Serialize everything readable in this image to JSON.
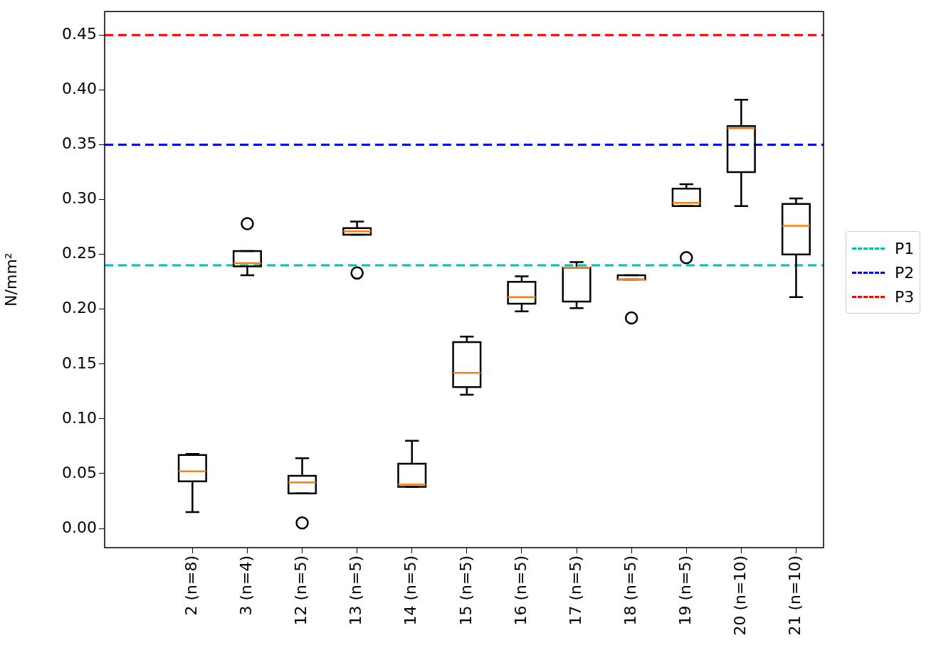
{
  "chart_data": {
    "type": "box",
    "ylabel": "N/mm²",
    "categories": [
      "2 (n=8)",
      "3 (n=4)",
      "12 (n=5)",
      "13 (n=5)",
      "14 (n=5)",
      "15 (n=5)",
      "16 (n=5)",
      "17 (n=5)",
      "18 (n=5)",
      "19 (n=5)",
      "20 (n=10)",
      "21 (n=10)"
    ],
    "boxes": [
      {
        "low": 0.015,
        "q1": 0.043,
        "median": 0.052,
        "q3": 0.067,
        "high": 0.068
      },
      {
        "low": 0.231,
        "q1": 0.239,
        "median": 0.242,
        "q3": 0.253,
        "high": 0.253,
        "outliers": [
          0.278
        ]
      },
      {
        "low": 0.032,
        "q1": 0.032,
        "median": 0.042,
        "q3": 0.048,
        "high": 0.064,
        "outliers": [
          0.005
        ]
      },
      {
        "low": 0.268,
        "q1": 0.268,
        "median": 0.271,
        "q3": 0.274,
        "high": 0.28,
        "outliers": [
          0.233
        ]
      },
      {
        "low": 0.038,
        "q1": 0.038,
        "median": 0.04,
        "q3": 0.059,
        "high": 0.08
      },
      {
        "low": 0.122,
        "q1": 0.129,
        "median": 0.142,
        "q3": 0.17,
        "high": 0.175
      },
      {
        "low": 0.198,
        "q1": 0.205,
        "median": 0.211,
        "q3": 0.225,
        "high": 0.23
      },
      {
        "low": 0.201,
        "q1": 0.207,
        "median": 0.238,
        "q3": 0.238,
        "high": 0.243
      },
      {
        "low": 0.227,
        "q1": 0.227,
        "median": 0.227,
        "q3": 0.231,
        "high": 0.231,
        "outliers": [
          0.192
        ]
      },
      {
        "low": 0.294,
        "q1": 0.294,
        "median": 0.297,
        "q3": 0.31,
        "high": 0.314,
        "outliers": [
          0.247
        ]
      },
      {
        "low": 0.294,
        "q1": 0.325,
        "median": 0.365,
        "q3": 0.367,
        "high": 0.391
      },
      {
        "low": 0.211,
        "q1": 0.25,
        "median": 0.276,
        "q3": 0.296,
        "high": 0.301
      }
    ],
    "ylim": [
      -0.0175,
      0.4715
    ],
    "yticks": [
      {
        "value": 0,
        "label": "0.00"
      },
      0.05,
      {
        "value": 0.1,
        "label": "0.10"
      },
      0.15,
      {
        "value": 0.2,
        "label": "0.20"
      },
      0.25,
      {
        "value": 0.3,
        "label": "0.30"
      },
      0.35,
      {
        "value": 0.4,
        "label": "0.40"
      },
      0.45
    ],
    "ref_lines": [
      {
        "axis": "y",
        "value": 0.24,
        "label": "P1",
        "color": "#00bfbf",
        "line_style": "dashed"
      },
      {
        "axis": "y",
        "value": 0.35,
        "label": "P2",
        "color": "#0000ff",
        "line_style": "dashed"
      },
      {
        "axis": "y",
        "value": 0.45,
        "label": "P3",
        "color": "#ff0000",
        "line_style": "dashed"
      }
    ],
    "grid": false,
    "legend": "right",
    "marker": "circle"
  }
}
